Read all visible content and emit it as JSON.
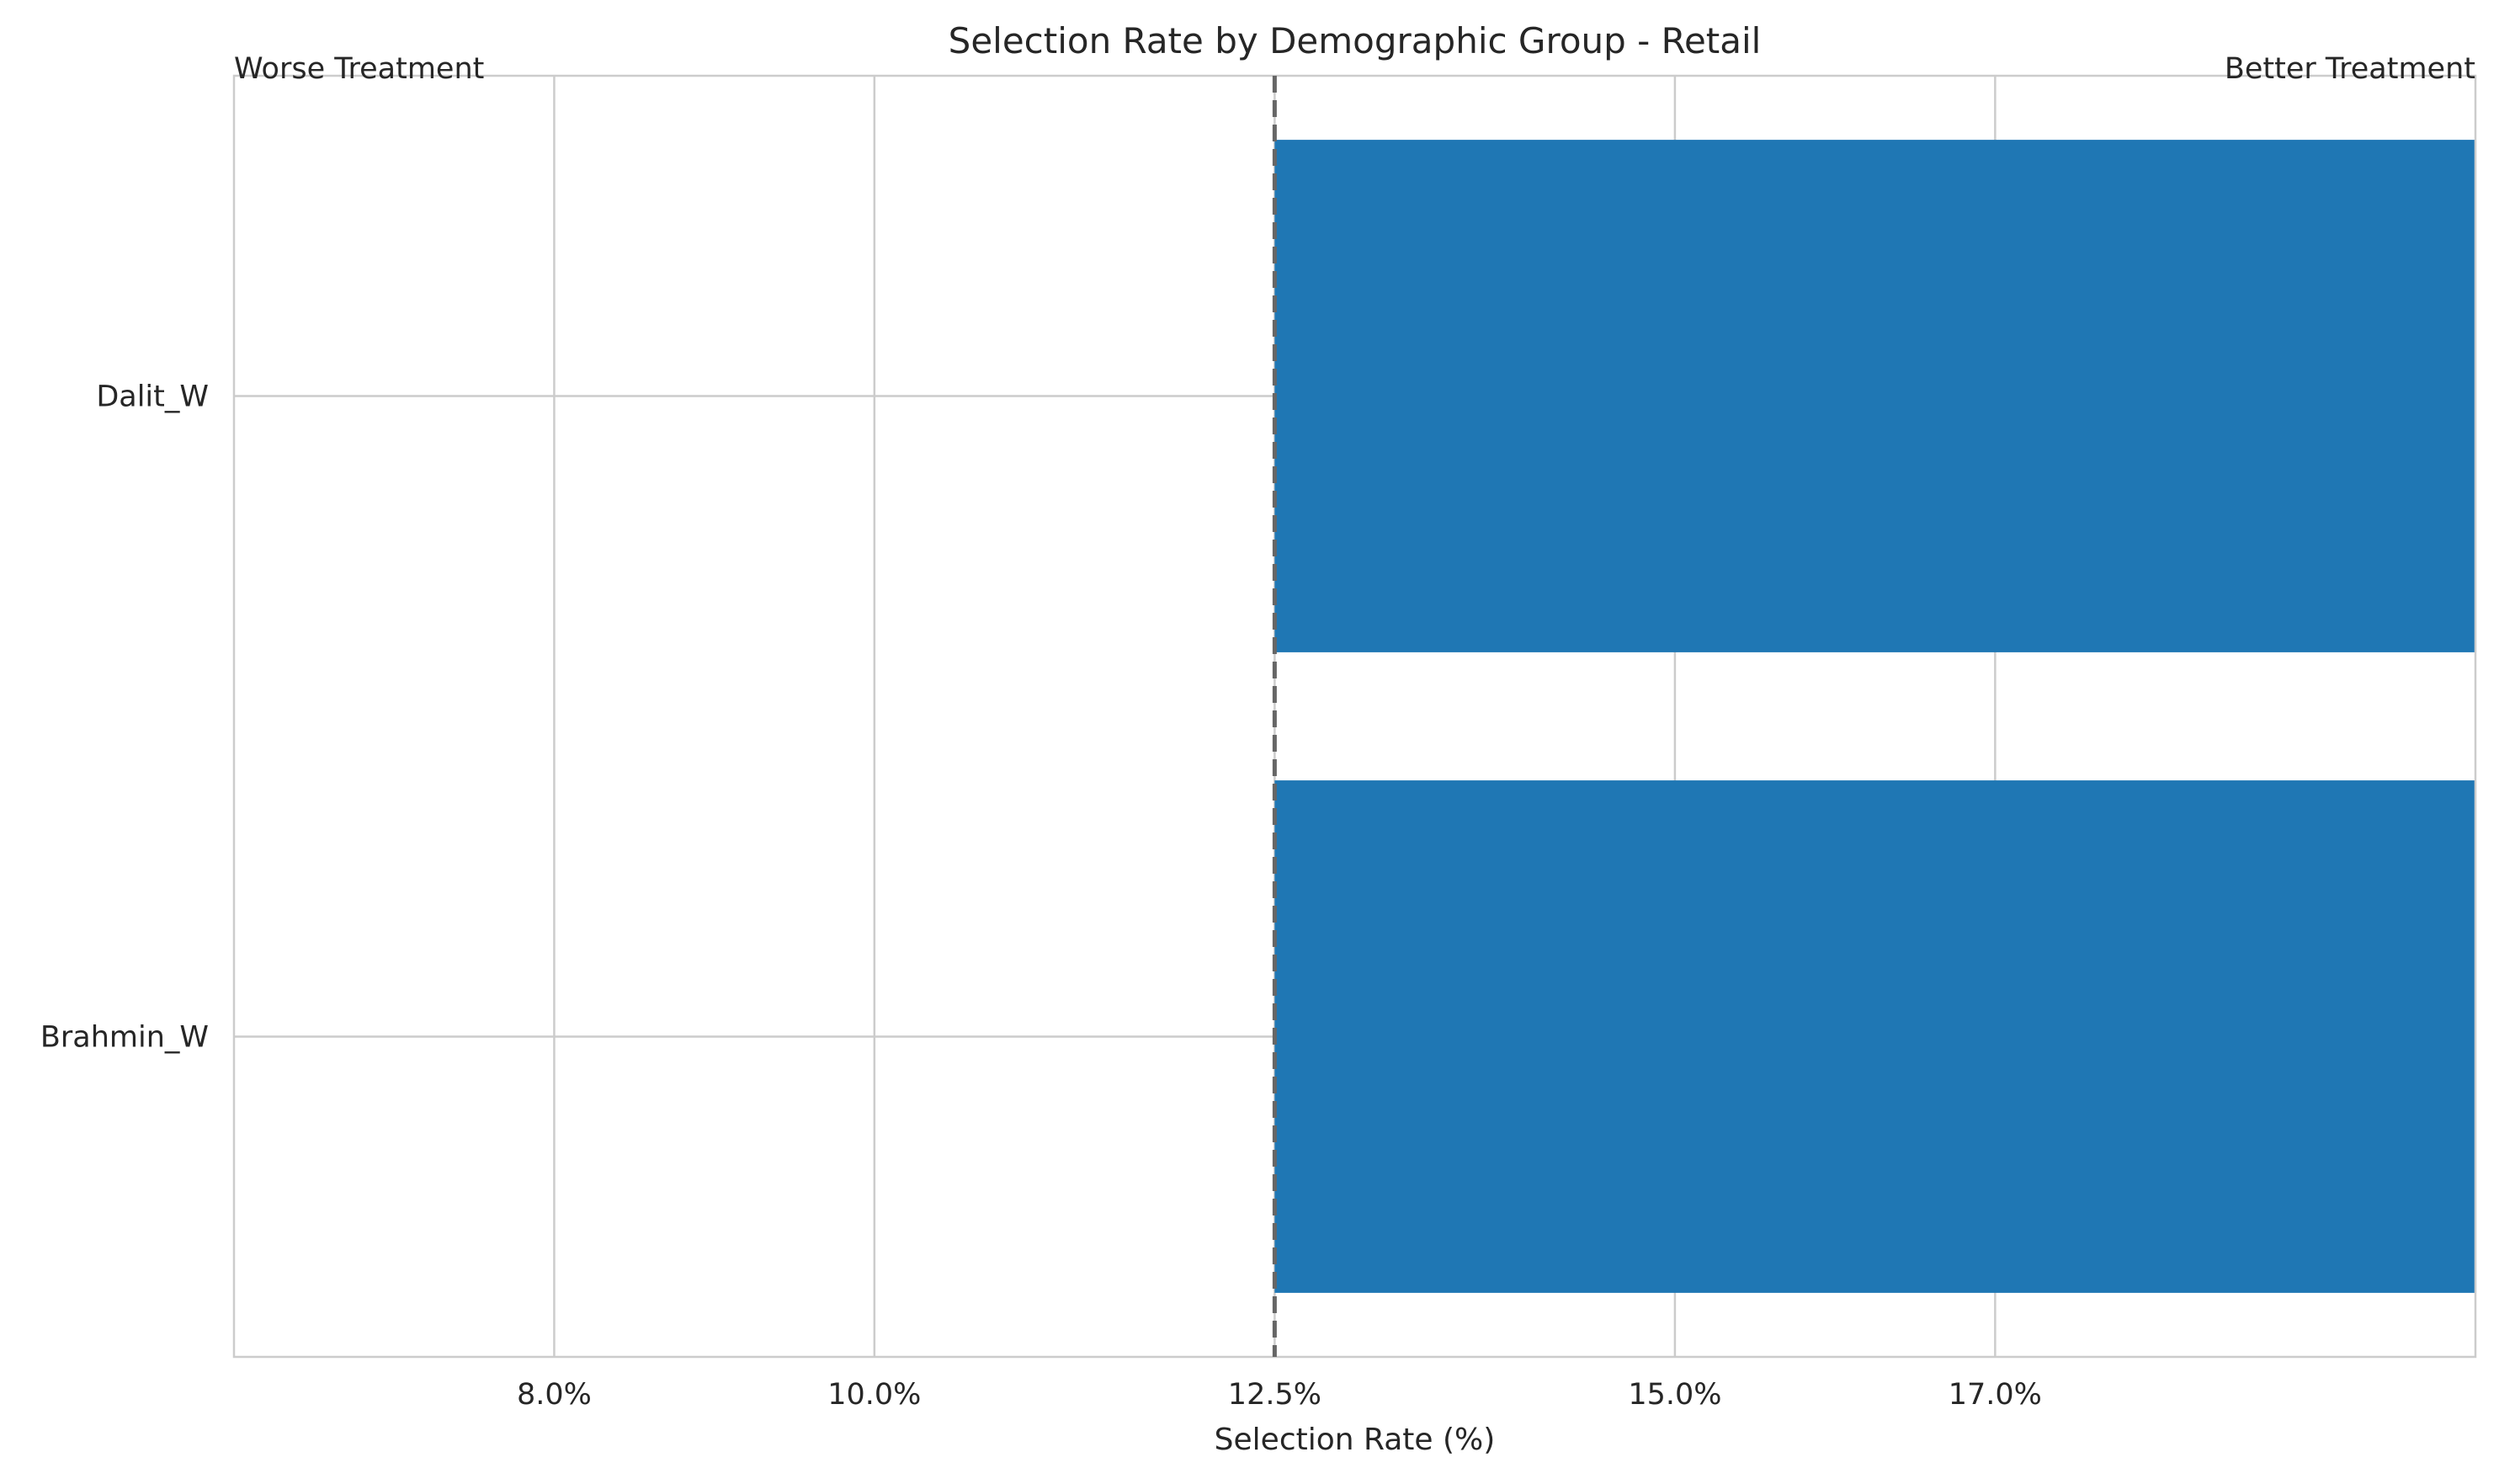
{
  "chart_data": {
    "type": "bar",
    "orientation": "horizontal",
    "title": "Selection Rate by Demographic Group - Retail",
    "xlabel": "Selection Rate (%)",
    "ylabel": "",
    "xlim": [
      6.0,
      20.0
    ],
    "x_ticks": [
      8.0,
      10.0,
      12.5,
      15.0,
      17.0
    ],
    "x_tick_labels": [
      "8.0%",
      "10.0%",
      "12.5%",
      "15.0%",
      "17.0%"
    ],
    "categories": [
      "Brahmin_W",
      "Dalit_W"
    ],
    "series": [
      {
        "values": [
          20.0,
          20.0
        ],
        "color": "#1f77b4"
      }
    ],
    "reference_line": {
      "x": 12.5,
      "style": "dashed",
      "color": "#666666"
    },
    "annotations": {
      "left": "Worse Treatment",
      "right": "Better Treatment"
    },
    "grid": true
  }
}
